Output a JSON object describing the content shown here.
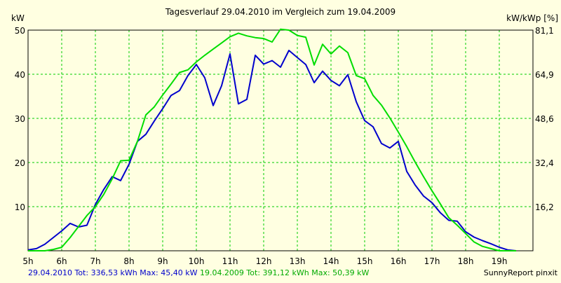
{
  "chart_data": {
    "type": "line",
    "title": "Tagesverlauf 29.04.2010 im Vergleich zum 19.04.2009",
    "ylabel_left": "kW",
    "ylabel_right": "kW/kWp [%]",
    "xlim": [
      5,
      20
    ],
    "ylim": [
      0,
      50
    ],
    "x_ticks": [
      "5h",
      "6h",
      "7h",
      "8h",
      "9h",
      "10h",
      "11h",
      "12h",
      "13h",
      "14h",
      "15h",
      "16h",
      "17h",
      "18h",
      "19h"
    ],
    "y_ticks_left": [
      "10",
      "20",
      "30",
      "40",
      "50"
    ],
    "y_ticks_right": [
      "16,2",
      "32,4",
      "48,6",
      "64,9",
      "81,1"
    ],
    "grid": true,
    "series": [
      {
        "name": "29.04.2010",
        "color": "#0000cc",
        "x": [
          5.0,
          5.25,
          5.5,
          5.75,
          6.0,
          6.25,
          6.5,
          6.75,
          7.0,
          7.25,
          7.5,
          7.75,
          8.0,
          8.25,
          8.5,
          8.75,
          9.0,
          9.25,
          9.5,
          9.75,
          10.0,
          10.25,
          10.5,
          10.75,
          11.0,
          11.25,
          11.5,
          11.75,
          12.0,
          12.25,
          12.5,
          12.75,
          13.0,
          13.25,
          13.5,
          13.75,
          14.0,
          14.25,
          14.5,
          14.75,
          15.0,
          15.25,
          15.5,
          15.75,
          16.0,
          16.25,
          16.5,
          16.75,
          17.0,
          17.25,
          17.5,
          17.75,
          18.0,
          18.25,
          18.5,
          18.75,
          19.0,
          19.25,
          19.5
        ],
        "values": [
          0.2,
          0.5,
          1.5,
          3.0,
          4.5,
          6.2,
          5.4,
          5.8,
          10.5,
          13.9,
          16.8,
          15.9,
          19.6,
          24.8,
          26.4,
          29.4,
          32.2,
          35.2,
          36.3,
          39.7,
          42.2,
          39.2,
          32.9,
          37.4,
          44.6,
          33.3,
          34.3,
          44.3,
          42.3,
          43.1,
          41.6,
          45.4,
          43.8,
          42.2,
          38.1,
          40.7,
          38.6,
          37.4,
          39.9,
          33.8,
          29.5,
          28.1,
          24.3,
          23.3,
          24.8,
          18.0,
          14.9,
          12.4,
          10.9,
          8.6,
          6.9,
          6.7,
          4.3,
          3.1,
          2.3,
          1.6,
          0.8,
          0.2,
          0.0
        ]
      },
      {
        "name": "19.04.2009",
        "color": "#00dd00",
        "x": [
          5.0,
          5.25,
          5.5,
          5.75,
          6.0,
          6.25,
          6.5,
          6.75,
          7.0,
          7.25,
          7.5,
          7.75,
          8.0,
          8.25,
          8.5,
          8.75,
          9.0,
          9.25,
          9.5,
          9.75,
          10.0,
          10.25,
          10.5,
          10.75,
          11.0,
          11.25,
          11.5,
          11.75,
          12.0,
          12.25,
          12.5,
          12.75,
          13.0,
          13.25,
          13.5,
          13.75,
          14.0,
          14.25,
          14.5,
          14.75,
          15.0,
          15.25,
          15.5,
          15.75,
          16.0,
          16.25,
          16.5,
          16.75,
          17.0,
          17.25,
          17.5,
          17.75,
          18.0,
          18.25,
          18.5,
          18.75,
          19.0,
          19.25,
          19.5
        ],
        "values": [
          0.0,
          0.0,
          0.0,
          0.3,
          0.8,
          3.0,
          5.5,
          8.0,
          10.0,
          12.8,
          16.3,
          20.4,
          20.5,
          24.8,
          30.8,
          32.6,
          35.3,
          37.8,
          40.4,
          41.0,
          42.8,
          44.3,
          45.7,
          47.1,
          48.5,
          49.3,
          48.7,
          48.3,
          48.1,
          47.3,
          50.2,
          50.0,
          48.8,
          48.4,
          42.1,
          46.8,
          44.6,
          46.4,
          44.9,
          39.7,
          39.0,
          35.2,
          33.0,
          30.1,
          26.9,
          23.6,
          20.1,
          16.8,
          13.6,
          10.6,
          7.5,
          5.8,
          3.9,
          2.0,
          1.0,
          0.5,
          0.0,
          0.0,
          0.0
        ]
      }
    ],
    "legend": [
      {
        "text": "29.04.2010 Tot: 336,53 kWh Max: 45,40 kW",
        "color": "#0000cc"
      },
      {
        "text": "19.04.2009 Tot: 391,12 kWh Max: 50,39 kW",
        "color": "#00aa00"
      }
    ],
    "credit": "SunnyReport pinxit"
  }
}
